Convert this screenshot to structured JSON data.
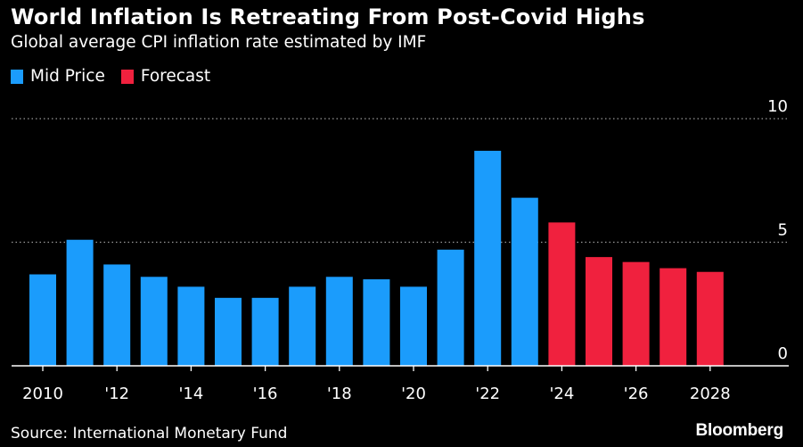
{
  "chart_data": {
    "type": "bar",
    "title": "World Inflation Is Retreating From Post-Covid Highs",
    "subtitle": "Global average CPI inflation rate estimated by IMF",
    "xlabel": "",
    "ylabel": "",
    "ylim": [
      0,
      10
    ],
    "yticks": [
      0,
      5,
      10
    ],
    "grid": true,
    "legend_position": "top-left",
    "series": [
      {
        "name": "Mid Price",
        "color": "#1b9cfc"
      },
      {
        "name": "Forecast",
        "color": "#f0213e"
      }
    ],
    "bars": [
      {
        "year": 2010,
        "value": 3.7,
        "series": "Mid Price"
      },
      {
        "year": 2011,
        "value": 5.1,
        "series": "Mid Price"
      },
      {
        "year": 2012,
        "value": 4.1,
        "series": "Mid Price"
      },
      {
        "year": 2013,
        "value": 3.6,
        "series": "Mid Price"
      },
      {
        "year": 2014,
        "value": 3.2,
        "series": "Mid Price"
      },
      {
        "year": 2015,
        "value": 2.75,
        "series": "Mid Price"
      },
      {
        "year": 2016,
        "value": 2.75,
        "series": "Mid Price"
      },
      {
        "year": 2017,
        "value": 3.2,
        "series": "Mid Price"
      },
      {
        "year": 2018,
        "value": 3.6,
        "series": "Mid Price"
      },
      {
        "year": 2019,
        "value": 3.5,
        "series": "Mid Price"
      },
      {
        "year": 2020,
        "value": 3.2,
        "series": "Mid Price"
      },
      {
        "year": 2021,
        "value": 4.7,
        "series": "Mid Price"
      },
      {
        "year": 2022,
        "value": 8.7,
        "series": "Mid Price"
      },
      {
        "year": 2023,
        "value": 6.8,
        "series": "Mid Price"
      },
      {
        "year": 2024,
        "value": 5.8,
        "series": "Forecast"
      },
      {
        "year": 2025,
        "value": 4.4,
        "series": "Forecast"
      },
      {
        "year": 2026,
        "value": 4.2,
        "series": "Forecast"
      },
      {
        "year": 2027,
        "value": 3.95,
        "series": "Forecast"
      },
      {
        "year": 2028,
        "value": 3.8,
        "series": "Forecast"
      }
    ],
    "xticks": [
      {
        "year": 2010,
        "label": "2010"
      },
      {
        "year": 2012,
        "label": "'12"
      },
      {
        "year": 2014,
        "label": "'14"
      },
      {
        "year": 2016,
        "label": "'16"
      },
      {
        "year": 2018,
        "label": "'18"
      },
      {
        "year": 2020,
        "label": "'20"
      },
      {
        "year": 2022,
        "label": "'22"
      },
      {
        "year": 2024,
        "label": "'24"
      },
      {
        "year": 2026,
        "label": "'26"
      },
      {
        "year": 2028,
        "label": "2028"
      }
    ]
  },
  "footer": {
    "source": "Source: International Monetary Fund",
    "brand": "Bloomberg"
  },
  "colors": {
    "background": "#000000",
    "text": "#ffffff",
    "grid": "#9a9a9a",
    "axis": "#ffffff"
  }
}
